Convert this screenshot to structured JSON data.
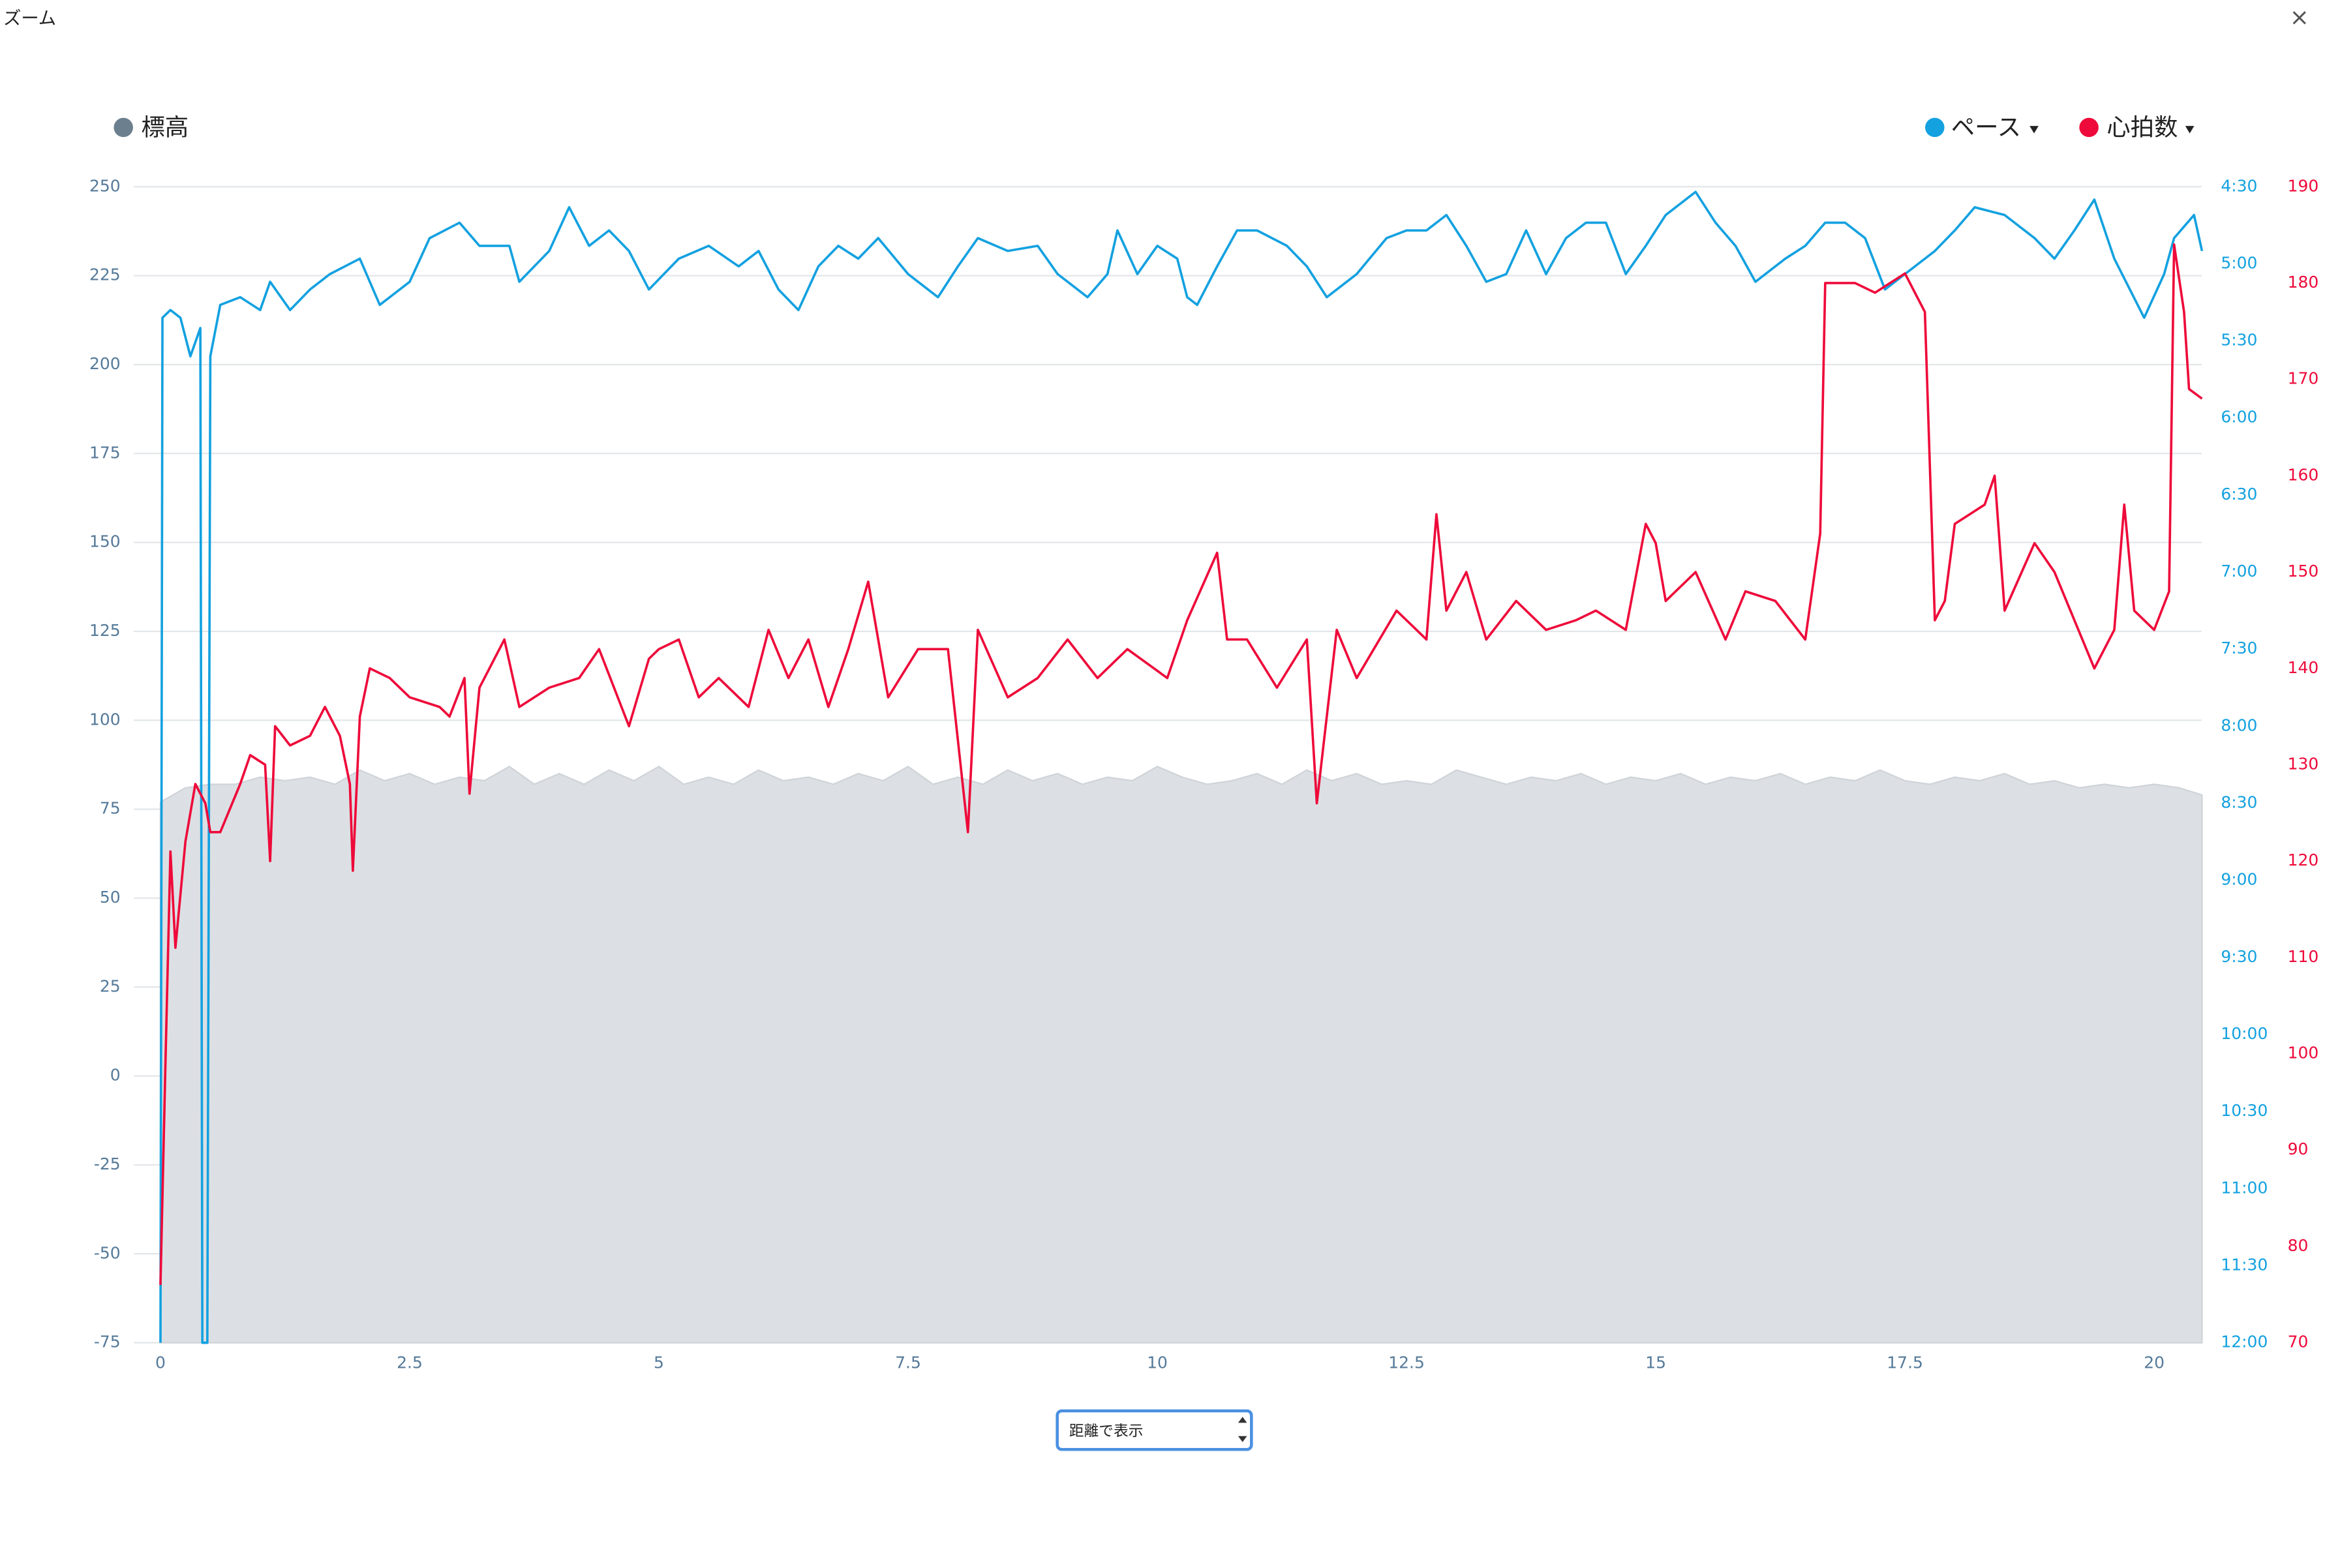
{
  "chart_data": {
    "type": "line",
    "title": "ズーム",
    "xlim": [
      0,
      20.48
    ],
    "xticks": [
      0,
      2.5,
      5,
      7.5,
      10,
      12.5,
      15,
      17.5,
      20
    ],
    "ylim": [
      -75,
      250
    ],
    "yticks": [
      -75,
      -50,
      -25,
      0,
      25,
      50,
      75,
      100,
      125,
      150,
      175,
      200,
      225,
      250
    ],
    "y2lim": [
      720,
      270
    ],
    "y2ticks": [
      {
        "value": 270,
        "label": "4:30"
      },
      {
        "value": 300,
        "label": "5:00"
      },
      {
        "value": 330,
        "label": "5:30"
      },
      {
        "value": 360,
        "label": "6:00"
      },
      {
        "value": 390,
        "label": "6:30"
      },
      {
        "value": 420,
        "label": "7:00"
      },
      {
        "value": 450,
        "label": "7:30"
      },
      {
        "value": 480,
        "label": "8:00"
      },
      {
        "value": 510,
        "label": "8:30"
      },
      {
        "value": 540,
        "label": "9:00"
      },
      {
        "value": 570,
        "label": "9:30"
      },
      {
        "value": 600,
        "label": "10:00"
      },
      {
        "value": 630,
        "label": "10:30"
      },
      {
        "value": 660,
        "label": "11:00"
      },
      {
        "value": 690,
        "label": "11:30"
      },
      {
        "value": 720,
        "label": "12:00"
      }
    ],
    "y3lim": [
      70,
      190
    ],
    "y3ticks": [
      70,
      80,
      90,
      100,
      110,
      120,
      130,
      140,
      150,
      160,
      170,
      180,
      190
    ],
    "grid": true,
    "series": [
      {
        "name": "標高",
        "color": "#6b7f8e",
        "fill": "#dce0e4",
        "area_color": "#cfd4d9",
        "axis": "y",
        "x": [
          0,
          0.25,
          0.5,
          0.75,
          1,
          1.25,
          1.5,
          1.75,
          2,
          2.25,
          2.5,
          2.75,
          3,
          3.25,
          3.5,
          3.75,
          4,
          4.25,
          4.5,
          4.75,
          5,
          5.25,
          5.5,
          5.75,
          6,
          6.25,
          6.5,
          6.75,
          7,
          7.25,
          7.5,
          7.75,
          8,
          8.25,
          8.5,
          8.75,
          9,
          9.25,
          9.5,
          9.75,
          10,
          10.25,
          10.5,
          10.75,
          11,
          11.25,
          11.5,
          11.75,
          12,
          12.25,
          12.5,
          12.75,
          13,
          13.25,
          13.5,
          13.75,
          14,
          14.25,
          14.5,
          14.75,
          15,
          15.25,
          15.5,
          15.75,
          16,
          16.25,
          16.5,
          16.75,
          17,
          17.25,
          17.5,
          17.75,
          18,
          18.25,
          18.5,
          18.75,
          19,
          19.25,
          19.5,
          19.75,
          20,
          20.25,
          20.48
        ],
        "values": [
          77,
          81,
          82,
          82,
          84,
          83,
          84,
          82,
          86,
          83,
          85,
          82,
          84,
          83,
          87,
          82,
          85,
          82,
          86,
          83,
          87,
          82,
          84,
          82,
          86,
          83,
          84,
          82,
          85,
          83,
          87,
          82,
          84,
          82,
          86,
          83,
          85,
          82,
          84,
          83,
          87,
          84,
          82,
          83,
          85,
          82,
          86,
          83,
          85,
          82,
          83,
          82,
          86,
          84,
          82,
          84,
          83,
          85,
          82,
          84,
          83,
          85,
          82,
          84,
          83,
          85,
          82,
          84,
          83,
          86,
          83,
          82,
          84,
          83,
          85,
          82,
          83,
          81,
          82,
          81,
          82,
          81,
          79
        ]
      },
      {
        "name": "ペース",
        "color": "#13a1e0",
        "axis": "y2",
        "x": [
          0,
          0.02,
          0.1,
          0.2,
          0.3,
          0.4,
          0.42,
          0.47,
          0.5,
          0.6,
          0.8,
          1.0,
          1.1,
          1.3,
          1.5,
          1.7,
          2.0,
          2.2,
          2.5,
          2.7,
          3.0,
          3.2,
          3.5,
          3.6,
          3.9,
          4.1,
          4.3,
          4.5,
          4.7,
          4.9,
          5.2,
          5.5,
          5.8,
          6.0,
          6.2,
          6.4,
          6.6,
          6.8,
          7.0,
          7.2,
          7.5,
          7.8,
          8.0,
          8.2,
          8.5,
          8.8,
          9.0,
          9.3,
          9.5,
          9.6,
          9.8,
          10.0,
          10.2,
          10.3,
          10.4,
          10.6,
          10.8,
          11.0,
          11.3,
          11.5,
          11.7,
          12.0,
          12.3,
          12.5,
          12.7,
          12.9,
          13.1,
          13.3,
          13.5,
          13.7,
          13.9,
          14.1,
          14.3,
          14.5,
          14.7,
          14.9,
          15.1,
          15.4,
          15.6,
          15.8,
          16.0,
          16.3,
          16.5,
          16.7,
          16.9,
          17.1,
          17.3,
          17.5,
          17.8,
          18.0,
          18.2,
          18.5,
          18.8,
          19.0,
          19.2,
          19.4,
          19.6,
          19.9,
          20.1,
          20.2,
          20.4,
          20.48
        ],
        "values": [
          720,
          321,
          318,
          321,
          336,
          325,
          720,
          720,
          336,
          316,
          313,
          318,
          307,
          318,
          310,
          304,
          298,
          316,
          307,
          290,
          284,
          293,
          293,
          307,
          295,
          278,
          293,
          287,
          295,
          310,
          298,
          293,
          301,
          295,
          310,
          318,
          301,
          293,
          298,
          290,
          304,
          313,
          301,
          290,
          295,
          293,
          304,
          313,
          304,
          287,
          304,
          293,
          298,
          313,
          316,
          301,
          287,
          287,
          293,
          301,
          313,
          304,
          290,
          287,
          287,
          281,
          293,
          307,
          304,
          287,
          304,
          290,
          284,
          284,
          304,
          293,
          281,
          272,
          284,
          293,
          307,
          298,
          293,
          284,
          284,
          290,
          310,
          304,
          295,
          287,
          278,
          281,
          290,
          298,
          287,
          275,
          298,
          321,
          304,
          290,
          281,
          295
        ]
      },
      {
        "name": "心拍数",
        "color": "#ee0a3a",
        "axis": "y3",
        "x": [
          0,
          0.05,
          0.1,
          0.15,
          0.25,
          0.35,
          0.45,
          0.5,
          0.6,
          0.8,
          0.9,
          1.05,
          1.1,
          1.15,
          1.3,
          1.5,
          1.65,
          1.8,
          1.9,
          1.93,
          2.0,
          2.1,
          2.3,
          2.5,
          2.8,
          2.9,
          3.05,
          3.1,
          3.2,
          3.45,
          3.6,
          3.9,
          4.2,
          4.4,
          4.7,
          4.9,
          5.0,
          5.2,
          5.4,
          5.6,
          5.9,
          6.1,
          6.3,
          6.5,
          6.7,
          6.9,
          7.1,
          7.3,
          7.6,
          7.9,
          8.1,
          8.2,
          8.5,
          8.8,
          9.1,
          9.4,
          9.7,
          10.1,
          10.3,
          10.6,
          10.7,
          10.9,
          11.2,
          11.5,
          11.6,
          11.8,
          12.0,
          12.4,
          12.7,
          12.8,
          12.9,
          13.1,
          13.3,
          13.6,
          13.9,
          14.2,
          14.4,
          14.7,
          14.9,
          15.0,
          15.1,
          15.4,
          15.7,
          15.9,
          16.2,
          16.5,
          16.65,
          16.7,
          17.0,
          17.2,
          17.5,
          17.7,
          17.8,
          17.9,
          18.0,
          18.3,
          18.4,
          18.5,
          18.8,
          19.0,
          19.2,
          19.4,
          19.6,
          19.7,
          19.8,
          20.0,
          20.15,
          20.2,
          20.3,
          20.35,
          20.48
        ],
        "values": [
          76,
          99,
          121,
          111,
          122,
          128,
          126,
          123,
          123,
          128,
          131,
          130,
          120,
          134,
          132,
          133,
          136,
          133,
          128,
          119,
          135,
          140,
          139,
          137,
          136,
          135,
          139,
          127,
          138,
          143,
          136,
          138,
          139,
          142,
          134,
          141,
          142,
          143,
          137,
          139,
          136,
          144,
          139,
          143,
          136,
          142,
          149,
          137,
          142,
          142,
          123,
          144,
          137,
          139,
          143,
          139,
          142,
          139,
          145,
          152,
          143,
          143,
          138,
          143,
          126,
          144,
          139,
          146,
          143,
          156,
          146,
          150,
          143,
          147,
          144,
          145,
          146,
          144,
          155,
          153,
          147,
          150,
          143,
          148,
          147,
          143,
          154,
          180,
          180,
          179,
          181,
          177,
          145,
          147,
          155,
          157,
          160,
          146,
          153,
          150,
          145,
          140,
          144,
          157,
          146,
          144,
          148,
          184,
          177,
          169,
          168
        ]
      }
    ]
  },
  "controls": {
    "x_mode": "距離で表示"
  }
}
